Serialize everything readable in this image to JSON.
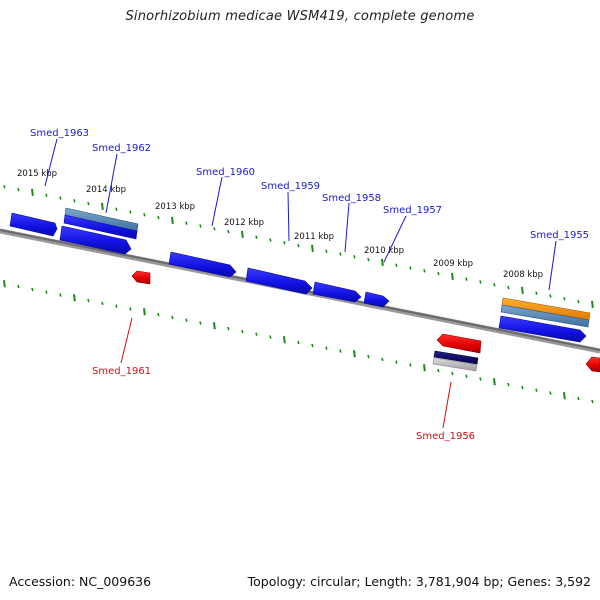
{
  "title": "Sinorhizobium medicae WSM419, complete genome",
  "footer": {
    "accession": "Accession: NC_009636",
    "summary": "Topology: circular; Length: 3,781,904 bp; Genes: 3,592"
  },
  "colors": {
    "forward_gene": "#1a1aee",
    "reverse_gene": "#ee1111",
    "tick": "#1e8a1e",
    "forward_label": "#1a1acc",
    "reverse_label": "#cc1111",
    "backbone": "#888888"
  },
  "map": {
    "kbp_markers": [
      "2015 kbp",
      "2014 kbp",
      "2013 kbp",
      "2012 kbp",
      "2011 kbp",
      "2010 kbp",
      "2009 kbp",
      "2008 kbp"
    ],
    "forward_genes": [
      "Smed_1963",
      "Smed_1962",
      "Smed_1960",
      "Smed_1959",
      "Smed_1958",
      "Smed_1957",
      "Smed_1955"
    ],
    "reverse_genes": [
      "Smed_1961",
      "Smed_1956"
    ]
  }
}
